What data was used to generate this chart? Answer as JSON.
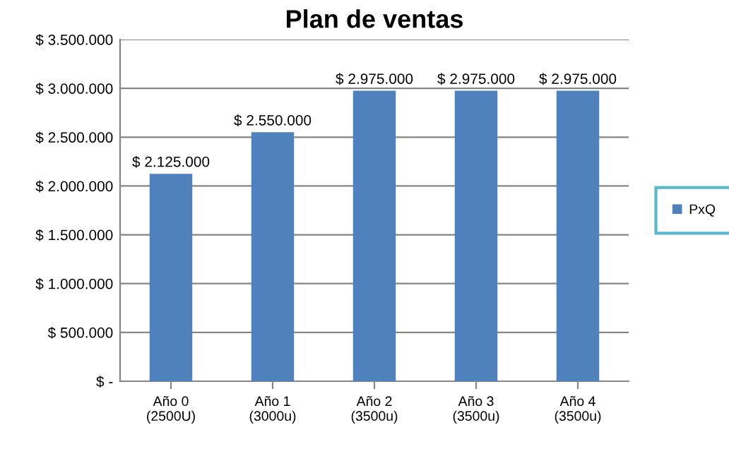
{
  "chart_data": {
    "type": "bar",
    "title": "Plan de ventas",
    "categories": [
      "Año 0\n(2500U)",
      "Año 1\n(3000u)",
      "Año 2\n(3500u)",
      "Año 3\n(3500u)",
      "Año 4\n(3500u)"
    ],
    "series": [
      {
        "name": "PxQ",
        "color": "#4f81bd",
        "values": [
          2125000,
          2550000,
          2975000,
          2975000,
          2975000
        ],
        "value_labels": [
          "$ 2.125.000",
          "$ 2.550.000",
          "$ 2.975.000",
          "$ 2.975.000",
          "$ 2.975.000"
        ]
      }
    ],
    "ylim": [
      0,
      3500000
    ],
    "yticks": [
      {
        "value": 0,
        "label": "$ -"
      },
      {
        "value": 500000,
        "label": "$ 500.000"
      },
      {
        "value": 1000000,
        "label": "$ 1.000.000"
      },
      {
        "value": 1500000,
        "label": "$ 1.500.000"
      },
      {
        "value": 2000000,
        "label": "$ 2.000.000"
      },
      {
        "value": 2500000,
        "label": "$ 2.500.000"
      },
      {
        "value": 3000000,
        "label": "$ 3.000.000"
      },
      {
        "value": 3500000,
        "label": "$ 3.500.000"
      }
    ],
    "grid": "y",
    "legend": "right"
  }
}
